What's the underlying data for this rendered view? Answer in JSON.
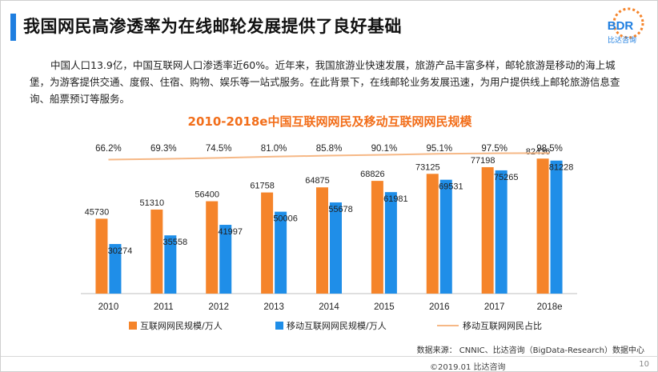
{
  "slide": {
    "title": "我国网民高渗透率为在线邮轮发展提供了良好基础",
    "paragraph": "中国人口13.9亿，中国互联网人口渗透率近60%。近年来，我国旅游业快速发展，旅游产品丰富多样，邮轮旅游是移动的海上城堡，为游客提供交通、度假、住宿、购物、娱乐等一站式服务。在此背景下，在线邮轮业务发展迅速，为用户提供线上邮轮旅游信息查询、船票预订等服务。",
    "source": "数据来源：  CNNIC、比达咨询（BigData-Research）数据中心",
    "footer": "©2019.01  比达咨询",
    "page_number": "10",
    "logo": {
      "text": "BDR",
      "subtext": "比达咨询"
    }
  },
  "colors": {
    "netizen": "#f5842a",
    "mobile": "#1f8ee8",
    "ratio": "#f6b886",
    "title": "#f26e1a",
    "accent": "#1e7ee0"
  },
  "chart_data": {
    "type": "bar",
    "title": "2010-2018e中国互联网网民及移动互联网网民规模",
    "categories": [
      "2010",
      "2011",
      "2012",
      "2013",
      "2014",
      "2015",
      "2016",
      "2017",
      "2018e"
    ],
    "series": [
      {
        "name": "互联网网民规模/万人",
        "values": [
          45730,
          51310,
          56400,
          61758,
          64875,
          68826,
          73125,
          77198,
          82436
        ]
      },
      {
        "name": "移动互联网网民规模/万人",
        "values": [
          30274,
          35558,
          41997,
          50006,
          55678,
          61981,
          69531,
          75265,
          81228
        ]
      }
    ],
    "line_series": {
      "name": "移动互联网网民占比",
      "values": [
        66.2,
        69.3,
        74.5,
        81.0,
        85.8,
        90.1,
        95.1,
        97.5,
        98.5
      ],
      "labels": [
        "66.2%",
        "69.3%",
        "74.5%",
        "81.0%",
        "85.8%",
        "90.1%",
        "95.1%",
        "97.5%",
        "98.5%"
      ]
    },
    "ylim": [
      0,
      85000
    ],
    "grid": false,
    "legend_position": "bottom"
  }
}
